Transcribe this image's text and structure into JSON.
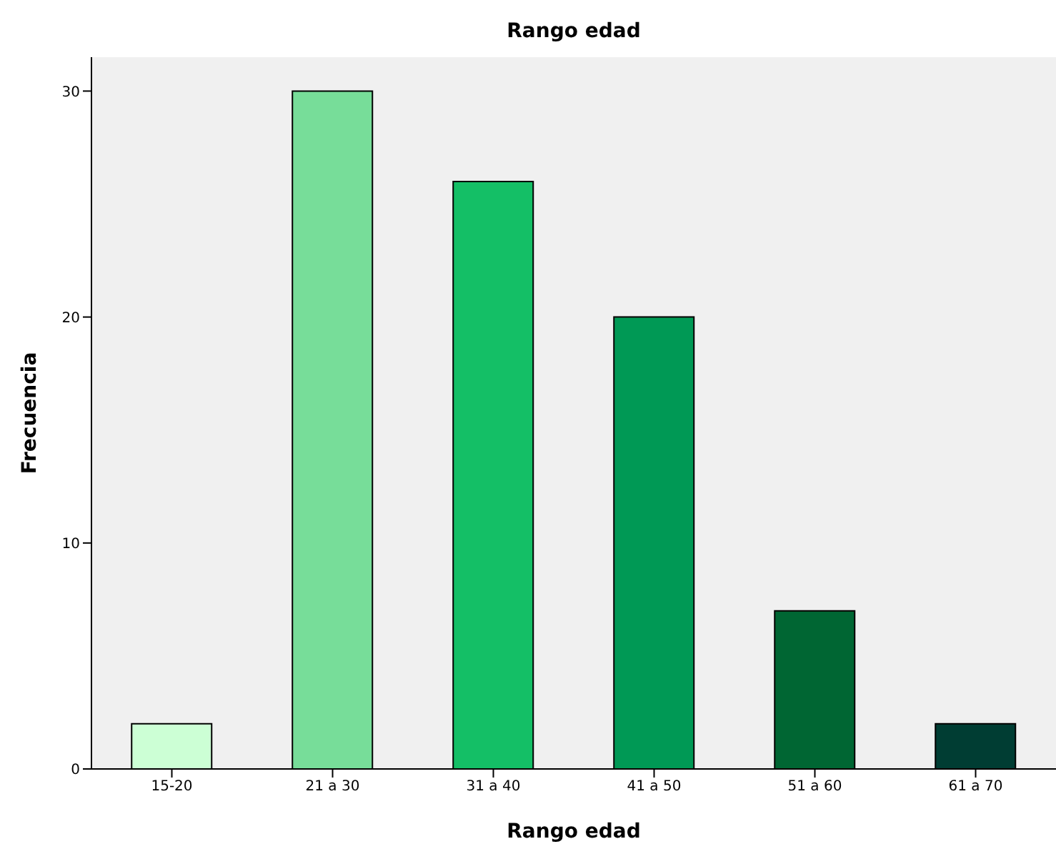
{
  "chart_data": {
    "type": "bar",
    "title": "Rango edad",
    "xlabel": "Rango edad",
    "ylabel": "Frecuencia",
    "categories": [
      "15-20",
      "21 a 30",
      "31 a 40",
      "41 a 50",
      "51 a 60",
      "61 a 70"
    ],
    "values": [
      2,
      30,
      26,
      20,
      7,
      2
    ],
    "colors": [
      "#ccffd5",
      "#77dd99",
      "#14bf66",
      "#009955",
      "#006633",
      "#003d33"
    ],
    "ylim": [
      0,
      31.5
    ],
    "yticks": [
      0,
      10,
      20,
      30
    ],
    "grid": false
  }
}
